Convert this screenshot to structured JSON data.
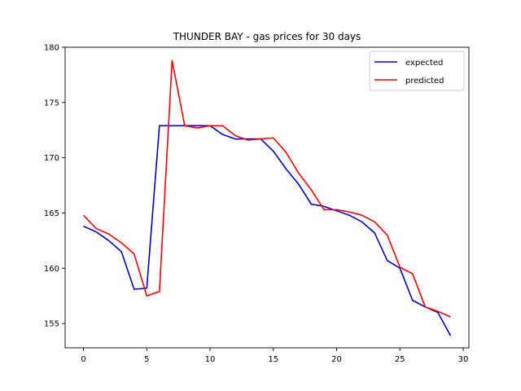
{
  "chart_data": {
    "type": "line",
    "title": "THUNDER BAY - gas prices for 30 days",
    "xlabel": "",
    "ylabel": "",
    "xlim": [
      -1.45,
      30.45
    ],
    "ylim": [
      152.8,
      180
    ],
    "x_ticks": [
      0,
      5,
      10,
      15,
      20,
      25,
      30
    ],
    "y_ticks": [
      155,
      160,
      165,
      170,
      175,
      180
    ],
    "grid": false,
    "legend_position": "top-right",
    "x": [
      0,
      1,
      2,
      3,
      4,
      5,
      6,
      7,
      8,
      9,
      10,
      11,
      12,
      13,
      14,
      15,
      16,
      17,
      18,
      19,
      20,
      21,
      22,
      23,
      24,
      25,
      26,
      27,
      28,
      29
    ],
    "series": [
      {
        "name": "expected",
        "color": "#0000cc",
        "values": [
          163.8,
          163.3,
          162.5,
          161.5,
          158.1,
          158.2,
          172.9,
          172.9,
          172.9,
          172.9,
          172.9,
          172.1,
          171.7,
          171.7,
          171.7,
          170.6,
          169.0,
          167.6,
          165.8,
          165.6,
          165.2,
          164.8,
          164.2,
          163.2,
          160.7,
          160.0,
          157.1,
          156.5,
          156.0,
          153.9
        ]
      },
      {
        "name": "predicted",
        "color": "#ff0000",
        "values": [
          164.8,
          163.6,
          163.1,
          162.3,
          161.3,
          157.5,
          157.9,
          178.8,
          172.9,
          172.7,
          172.9,
          172.9,
          172.0,
          171.6,
          171.7,
          171.8,
          170.5,
          168.6,
          167.1,
          165.3,
          165.3,
          165.1,
          164.8,
          164.2,
          163.0,
          160.1,
          159.5,
          156.5,
          156.1,
          155.6
        ]
      }
    ]
  }
}
